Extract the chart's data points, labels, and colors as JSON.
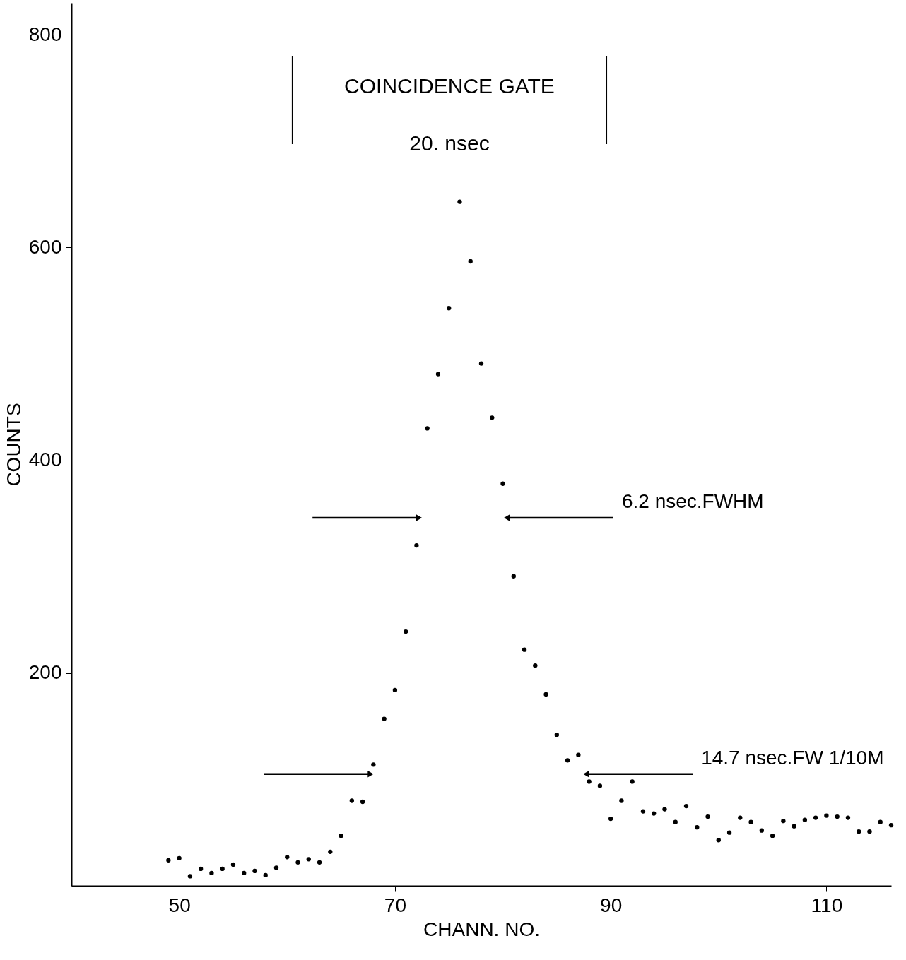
{
  "chart_data": {
    "type": "scatter",
    "xlabel": "CHANN. NO.",
    "ylabel": "COUNTS",
    "x": [
      49,
      50,
      51,
      52,
      53,
      54,
      55,
      56,
      57,
      58,
      59,
      60,
      61,
      62,
      63,
      64,
      65,
      66,
      67,
      68,
      69,
      70,
      71,
      72,
      73,
      74,
      75,
      76,
      77,
      78,
      79,
      80,
      81,
      82,
      83,
      84,
      85,
      86,
      87,
      88,
      89,
      90,
      91,
      92,
      93,
      94,
      95,
      96,
      97,
      98,
      99,
      100,
      101,
      102,
      103,
      104,
      105,
      106,
      107,
      108,
      109,
      110,
      111,
      112,
      113,
      114,
      115,
      116
    ],
    "series": [
      {
        "color": "#000000",
        "values": [
          24,
          26,
          9,
          16,
          12,
          16,
          20,
          12,
          14,
          10,
          17,
          27,
          22,
          25,
          22,
          32,
          47,
          80,
          79,
          114,
          157,
          184,
          239,
          320,
          430,
          481,
          543,
          643,
          587,
          491,
          440,
          378,
          291,
          222,
          207,
          180,
          142,
          118,
          123,
          98,
          94,
          63,
          80,
          98,
          70,
          68,
          72,
          60,
          75,
          55,
          65,
          43,
          50,
          64,
          60,
          52,
          47,
          61,
          56,
          62,
          64,
          66,
          65,
          64,
          51,
          51,
          60,
          57
        ]
      }
    ],
    "marker": "circle",
    "grid": false,
    "xlim": [
      40,
      116
    ],
    "xticks": [
      50,
      70,
      90,
      110
    ],
    "ylim": [
      0,
      830
    ],
    "yticks": [
      200,
      400,
      600,
      800
    ],
    "ref_lines": [
      {
        "axis": "x",
        "value": 60.5
      },
      {
        "axis": "x",
        "value": 89.6
      },
      {
        "axis": "y",
        "value": 346,
        "label": "6.2 nsec.FWHM"
      },
      {
        "axis": "y",
        "value": 105,
        "label": "14.7 nsec.FW 1/10M"
      }
    ],
    "annotations": [
      "COINCIDENCE GATE",
      "20. nsec"
    ]
  }
}
